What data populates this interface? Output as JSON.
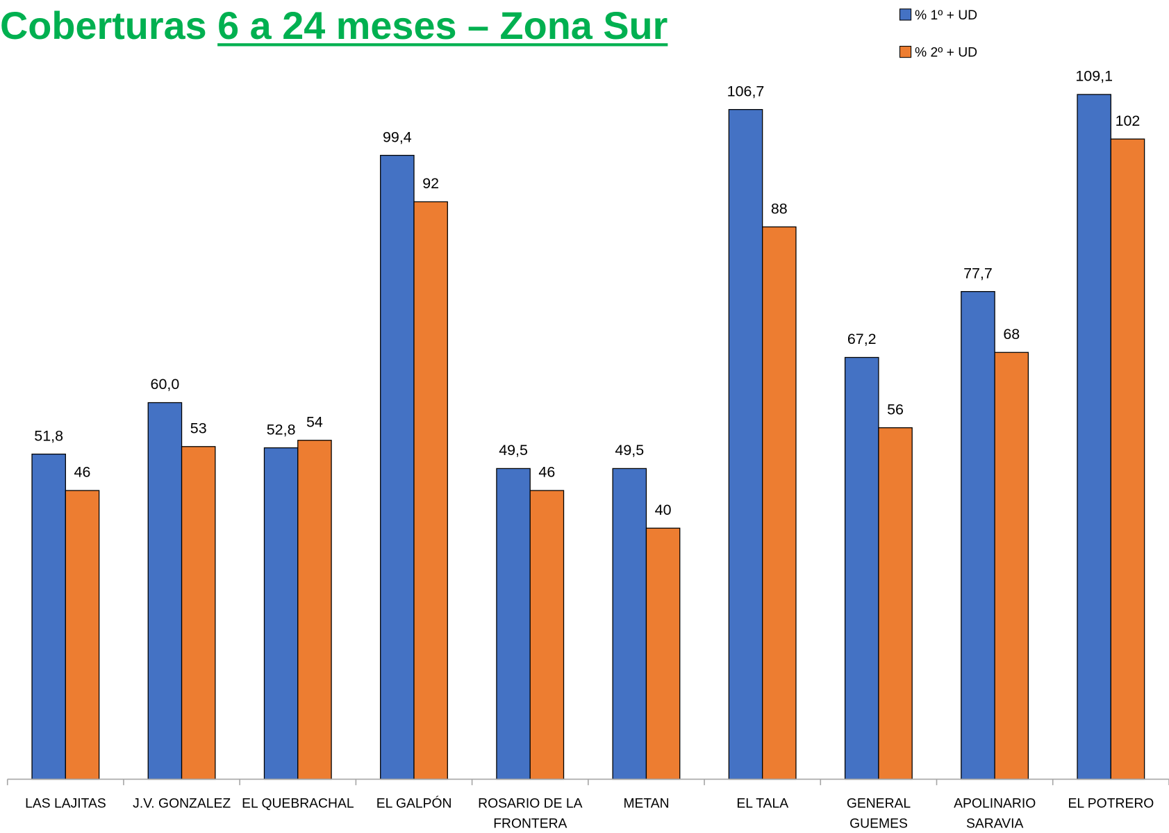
{
  "chart_data": {
    "type": "bar",
    "title": "Coberturas 6 a 24 meses – Zona Sur",
    "categories": [
      "LAS LAJITAS",
      "J.V. GONZALEZ",
      "EL QUEBRACHAL",
      "EL GALPÓN",
      "ROSARIO DE LA FRONTERA",
      "METAN",
      "EL TALA",
      "GENERAL GUEMES",
      "APOLINARIO SARAVIA",
      "EL POTRERO"
    ],
    "series": [
      {
        "name": "% 1º  + UD",
        "color": "#4472c4",
        "values": [
          51.8,
          60.0,
          52.8,
          99.4,
          49.5,
          49.5,
          106.7,
          67.2,
          77.7,
          109.1
        ],
        "value_labels": [
          "51,8",
          "60,0",
          "52,8",
          "99,4",
          "49,5",
          "49,5",
          "106,7",
          "67,2",
          "77,7",
          "109,1"
        ]
      },
      {
        "name": "% 2º  + UD",
        "color": "#ed7d31",
        "values": [
          46,
          53,
          54,
          92,
          46,
          40,
          88,
          56,
          68,
          102
        ]
      }
    ],
    "ylim": [
      0,
      115
    ],
    "legend": "top-right"
  }
}
